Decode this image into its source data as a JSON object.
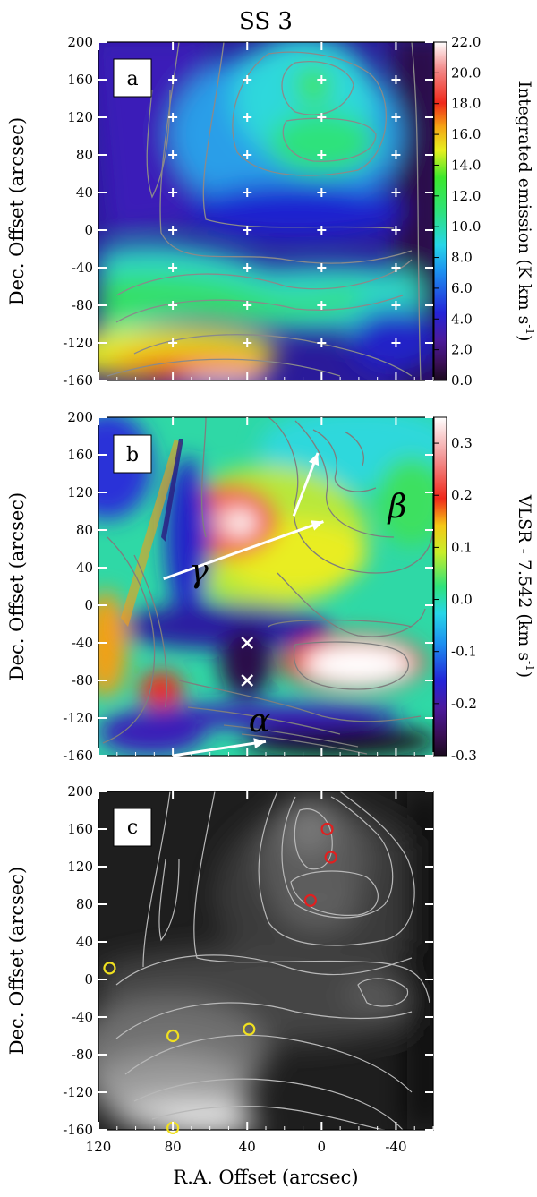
{
  "figure_title": "SS 3",
  "chart_data": [
    {
      "type": "heatmap",
      "panel": "a",
      "colorscale": "spectral (black-purple-blue-cyan-green-yellow-red-white)",
      "colorbar_label": "Integrated emission (K km s",
      "colorbar_label_sup": "-1",
      "colorbar_label_end": ")",
      "colorbar_range": [
        0.0,
        22.0
      ],
      "colorbar_ticks": [
        "0.0",
        "2.0",
        "4.0",
        "6.0",
        "8.0",
        "10.0",
        "12.0",
        "14.0",
        "16.0",
        "18.0",
        "20.0",
        "22.0"
      ],
      "xlim": [
        120,
        -60
      ],
      "ylim": [
        -160,
        200
      ],
      "ylabel": "Dec. Offset (arcsec)",
      "yticks": [
        "-160",
        "-120",
        "-80",
        "-40",
        "0",
        "40",
        "80",
        "120",
        "160",
        "200"
      ],
      "markers": {
        "style": "white plus",
        "points": [
          [
            80,
            160
          ],
          [
            40,
            160
          ],
          [
            0,
            160
          ],
          [
            -40,
            160
          ],
          [
            80,
            120
          ],
          [
            40,
            120
          ],
          [
            0,
            120
          ],
          [
            -40,
            120
          ],
          [
            80,
            80
          ],
          [
            40,
            80
          ],
          [
            0,
            80
          ],
          [
            -40,
            80
          ],
          [
            80,
            40
          ],
          [
            40,
            40
          ],
          [
            0,
            40
          ],
          [
            -40,
            40
          ],
          [
            80,
            0
          ],
          [
            40,
            0
          ],
          [
            0,
            0
          ],
          [
            -40,
            0
          ],
          [
            80,
            -40
          ],
          [
            40,
            -40
          ],
          [
            0,
            -40
          ],
          [
            -40,
            -40
          ],
          [
            80,
            -80
          ],
          [
            40,
            -80
          ],
          [
            0,
            -80
          ],
          [
            -40,
            -80
          ],
          [
            80,
            -120
          ],
          [
            40,
            -120
          ],
          [
            0,
            -120
          ],
          [
            -40,
            -120
          ]
        ]
      },
      "contours": "grey"
    },
    {
      "type": "heatmap",
      "panel": "b",
      "colorscale": "spectral (black-purple-blue-cyan-green-yellow-red-white)",
      "colorbar_label": "VLSR - 7.542 (km s",
      "colorbar_label_sup": "-1",
      "colorbar_label_end": ")",
      "colorbar_range": [
        -0.3,
        0.35
      ],
      "colorbar_ticks": [
        "-0.3",
        "-0.2",
        "-0.1",
        "0.0",
        "0.1",
        "0.2",
        "0.3"
      ],
      "xlim": [
        120,
        -60
      ],
      "ylim": [
        -160,
        200
      ],
      "ylabel": "Dec. Offset (arcsec)",
      "yticks": [
        "-160",
        "-120",
        "-80",
        "-40",
        "0",
        "40",
        "80",
        "120",
        "160",
        "200"
      ],
      "annotations": [
        {
          "label": "α",
          "from": [
            80,
            -160
          ],
          "to": [
            30,
            -145
          ]
        },
        {
          "label": "β",
          "from": [
            15,
            95
          ],
          "to": [
            2,
            162
          ]
        },
        {
          "label": "γ",
          "from": [
            85,
            28
          ],
          "to": [
            -1,
            89
          ]
        }
      ],
      "markers": {
        "style": "white cross",
        "points": [
          [
            40,
            -40
          ],
          [
            40,
            -80
          ]
        ]
      },
      "contours": "grey"
    },
    {
      "type": "heatmap",
      "panel": "c",
      "colorscale": "greyscale",
      "xlim": [
        120,
        -60
      ],
      "ylim": [
        -160,
        200
      ],
      "xlabel": "R.A. Offset (arcsec)",
      "ylabel": "Dec. Offset (arcsec)",
      "xticks": [
        "120",
        "80",
        "40",
        "0",
        "-40"
      ],
      "yticks": [
        "-160",
        "-120",
        "-80",
        "-40",
        "0",
        "40",
        "80",
        "120",
        "160",
        "200"
      ],
      "markers_red": [
        [
          -3,
          160
        ],
        [
          -5,
          130
        ],
        [
          6,
          84
        ]
      ],
      "markers_yellow": [
        [
          114,
          12
        ],
        [
          80,
          -60
        ],
        [
          39,
          -53
        ],
        [
          80,
          -158
        ]
      ],
      "contours": "light grey"
    }
  ]
}
